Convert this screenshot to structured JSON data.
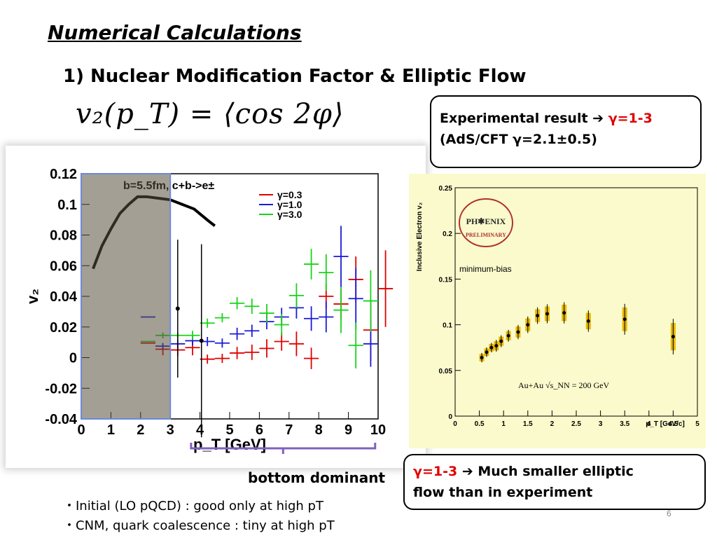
{
  "slide": {
    "title": "Numerical Calculations",
    "subtitle": "1) Nuclear Modification Factor & Elliptic Flow",
    "formula": "v₂(p_T) = ⟨cos 2φ⟩",
    "page_number": "6"
  },
  "box_experiment": {
    "line1_text": "Experimental result ",
    "arrow": "➔",
    "line1_value": " γ=1-3",
    "line2": "(AdS/CFT  γ=2.1±0.5)"
  },
  "box_result": {
    "red_text": "γ=1-3",
    "arrow": " ➔ ",
    "text1": "Much smaller elliptic",
    "text2": "flow than in experiment"
  },
  "annotation": {
    "bottom_dominant": "bottom dominant"
  },
  "bullets": [
    "・Initial (LO pQCD) : good only at high pT",
    "・CNM, quark coalescence : tiny at high pT"
  ],
  "colors": {
    "red": "#e00000",
    "blue": "#1a1ad8",
    "green": "#19d419",
    "purple": "#8060c0",
    "gold": "#e8b800",
    "panel": "#fafacc"
  },
  "chart_data": [
    {
      "type": "scatter",
      "annotation": "b=5.5fm, c+b->e±",
      "xlabel": "p_T [GeV]",
      "ylabel": "v₂",
      "xlim": [
        0,
        10
      ],
      "ylim": [
        -0.04,
        0.12
      ],
      "xticks": [
        "0",
        "1",
        "2",
        "3",
        "4",
        "5",
        "6",
        "7",
        "8",
        "9",
        "10"
      ],
      "yticks": [
        "0.12",
        "0.1",
        "0.08",
        "0.06",
        "0.04",
        "0.02",
        "0",
        "-0.02",
        "-0.04"
      ],
      "legend": [
        "γ=0.3",
        "γ=1.0",
        "γ=3.0"
      ],
      "legend_position": "top-right",
      "shaded_region_x": [
        0,
        3
      ],
      "series": [
        {
          "name": "γ=0.3",
          "color": "#e00000",
          "points": [
            [
              2.25,
              0.0095,
              0
            ],
            [
              2.75,
              0.0055,
              0.004
            ],
            [
              3.25,
              0.005,
              0.004
            ],
            [
              3.75,
              0.0065,
              0.005
            ],
            [
              4.25,
              -0.001,
              0.003
            ],
            [
              4.75,
              -0.0005,
              0.003
            ],
            [
              5.25,
              0.003,
              0.004
            ],
            [
              5.75,
              0.0035,
              0.005
            ],
            [
              6.25,
              0.006,
              0.006
            ],
            [
              6.75,
              0.0105,
              0.006
            ],
            [
              7.25,
              0.009,
              0.008
            ],
            [
              7.75,
              -0.0005,
              0.007
            ],
            [
              8.25,
              0.04,
              0.008
            ],
            [
              8.75,
              0.035,
              0.01
            ],
            [
              9.25,
              0.051,
              0.015
            ],
            [
              9.75,
              0.018,
              0.02
            ],
            [
              10.25,
              0.045,
              0.025
            ]
          ]
        },
        {
          "name": "γ=1.0",
          "color": "#1a1ad8",
          "points": [
            [
              2.25,
              0.0265,
              0
            ],
            [
              2.75,
              0.0075,
              0.002
            ],
            [
              3.25,
              0.009,
              0.003
            ],
            [
              3.75,
              0.011,
              0.003
            ],
            [
              4.25,
              0.0105,
              0.003
            ],
            [
              4.75,
              0.0095,
              0.003
            ],
            [
              5.25,
              0.0155,
              0.004
            ],
            [
              5.75,
              0.0175,
              0.004
            ],
            [
              6.25,
              0.0235,
              0.005
            ],
            [
              6.75,
              0.0265,
              0.006
            ],
            [
              7.25,
              0.0325,
              0.007
            ],
            [
              7.75,
              0.0255,
              0.008
            ],
            [
              8.25,
              0.0265,
              0.01
            ],
            [
              8.75,
              0.066,
              0.02
            ],
            [
              9.25,
              0.0385,
              0.02
            ],
            [
              9.75,
              0.009,
              0.015
            ]
          ]
        },
        {
          "name": "γ=3.0",
          "color": "#19d419",
          "points": [
            [
              2.25,
              0.0105,
              0
            ],
            [
              2.75,
              0.0145,
              0.002
            ],
            [
              3.25,
              0.0145,
              0.002
            ],
            [
              3.75,
              0.0145,
              0.003
            ],
            [
              4.25,
              0.0225,
              0.003
            ],
            [
              4.75,
              0.026,
              0.003
            ],
            [
              5.25,
              0.0355,
              0.004
            ],
            [
              5.75,
              0.0335,
              0.005
            ],
            [
              6.25,
              0.029,
              0.006
            ],
            [
              6.75,
              0.0215,
              0.007
            ],
            [
              7.25,
              0.0405,
              0.008
            ],
            [
              7.75,
              0.061,
              0.01
            ],
            [
              8.25,
              0.0555,
              0.012
            ],
            [
              8.75,
              0.031,
              0.015
            ],
            [
              9.25,
              0.008,
              0.015
            ],
            [
              9.75,
              0.037,
              0.02
            ]
          ]
        },
        {
          "name": "",
          "color": "#000000",
          "points": [
            [
              3.25,
              0.032,
              0.045
            ],
            [
              4.05,
              0.011,
              0.063
            ]
          ]
        }
      ],
      "curve": {
        "color": "#000000",
        "points": [
          [
            0.4,
            0.058
          ],
          [
            0.7,
            0.073
          ],
          [
            1.0,
            0.084
          ],
          [
            1.3,
            0.094
          ],
          [
            1.6,
            0.1
          ],
          [
            1.9,
            0.105
          ],
          [
            2.2,
            0.105
          ],
          [
            2.6,
            0.104
          ],
          [
            3.0,
            0.103
          ],
          [
            3.4,
            0.1
          ],
          [
            3.8,
            0.097
          ],
          [
            4.3,
            0.089
          ],
          [
            4.5,
            0.086
          ]
        ]
      }
    },
    {
      "type": "scatter",
      "ylabel": "Inclusive Electron v₂",
      "xlabel": "p_T [GeV/c]",
      "xlim": [
        0,
        5
      ],
      "ylim": [
        0,
        0.25
      ],
      "xticks": [
        "0",
        "0.5",
        "1",
        "1.5",
        "2",
        "2.5",
        "3",
        "3.5",
        "4",
        "4.5",
        "5"
      ],
      "yticks": [
        "0.25",
        "0.2",
        "0.15",
        "0.1",
        "0.05",
        "0"
      ],
      "logo_lines": [
        "PH✱ENIX",
        "PRELIMINARY"
      ],
      "label": "minimum-bias",
      "system_label": "Au+Au  √s_NN = 200 GeV",
      "points": [
        [
          0.55,
          0.064,
          0.004
        ],
        [
          0.65,
          0.07,
          0.004
        ],
        [
          0.75,
          0.075,
          0.004
        ],
        [
          0.85,
          0.077,
          0.005
        ],
        [
          0.95,
          0.082,
          0.005
        ],
        [
          1.1,
          0.088,
          0.005
        ],
        [
          1.3,
          0.092,
          0.006
        ],
        [
          1.5,
          0.1,
          0.007
        ],
        [
          1.7,
          0.11,
          0.007
        ],
        [
          1.9,
          0.112,
          0.008
        ],
        [
          2.25,
          0.113,
          0.009
        ],
        [
          2.75,
          0.104,
          0.009
        ],
        [
          3.5,
          0.106,
          0.013
        ],
        [
          4.5,
          0.087,
          0.015
        ]
      ]
    }
  ]
}
